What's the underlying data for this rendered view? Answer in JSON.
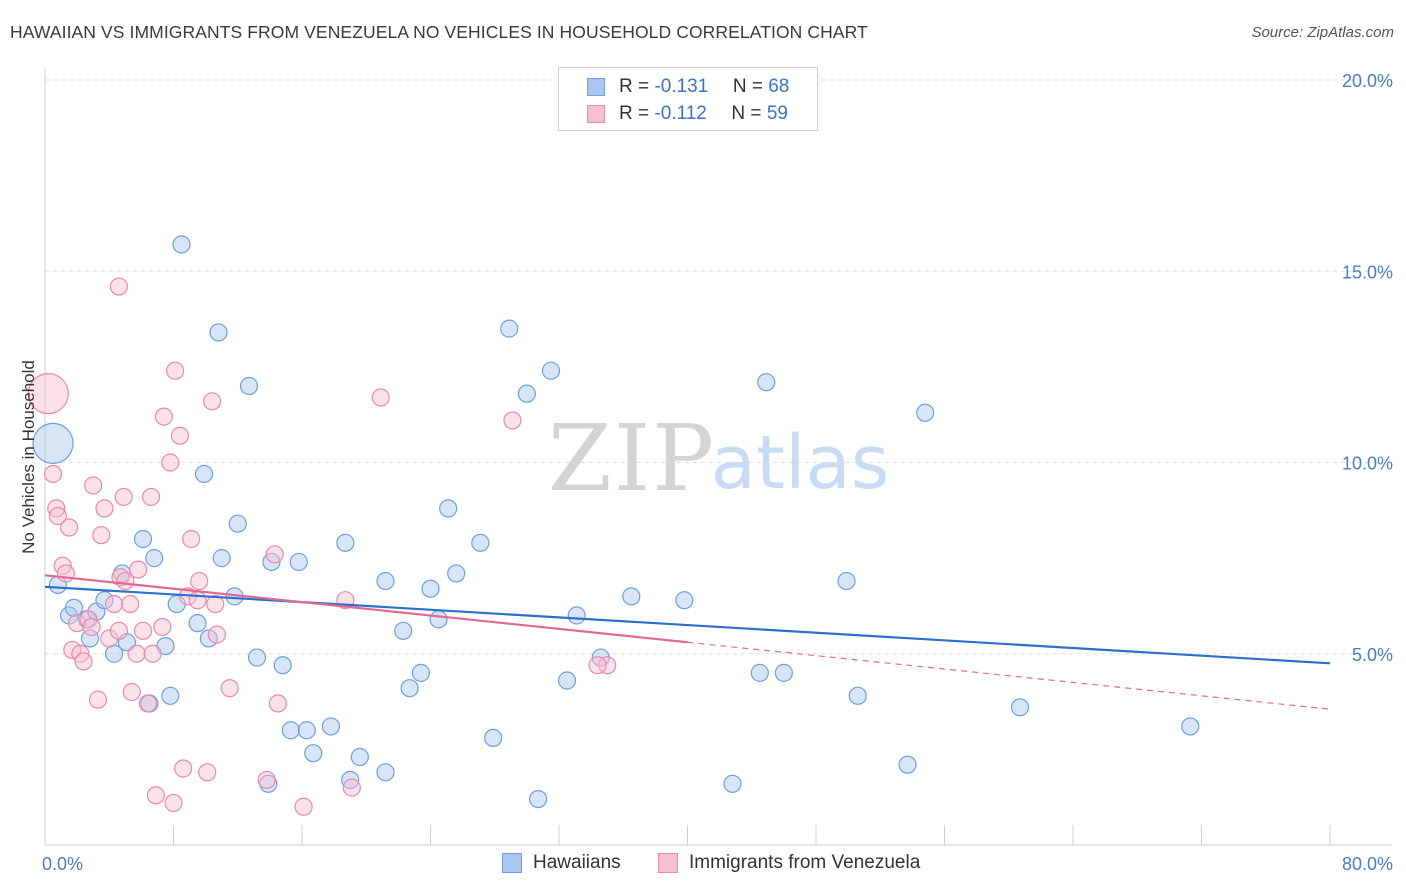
{
  "header": {
    "title": "HAWAIIAN VS IMMIGRANTS FROM VENEZUELA NO VEHICLES IN HOUSEHOLD CORRELATION CHART",
    "source": "Source: ZipAtlas.com"
  },
  "watermark": {
    "zip": "ZIP",
    "atlas": "atlas"
  },
  "legend": {
    "r_label": "R =",
    "n_label": "N =",
    "hawaiians": {
      "r": "-0.131",
      "n": "68"
    },
    "venezuela": {
      "r": "-0.112",
      "n": "59"
    }
  },
  "bottom_legend": {
    "hawaiians": "Hawaiians",
    "venezuela": "Immigrants from Venezuela"
  },
  "colors": {
    "hawaiians_fill": "#a9c6ee",
    "hawaiians_stroke": "#6f9fdc",
    "hawaiians_line": "#2d6fcc",
    "venezuela_fill": "#f7bfd1",
    "venezuela_stroke": "#e98aa8",
    "venezuela_line": "#e06a93",
    "tick_text": "#4a7cc7"
  },
  "chart_data": {
    "type": "scatter",
    "title": "HAWAIIAN VS IMMIGRANTS FROM VENEZUELA NO VEHICLES IN HOUSEHOLD CORRELATION CHART",
    "xlabel": "",
    "ylabel": "No Vehicles in Household",
    "xlim": [
      0,
      80
    ],
    "ylim": [
      0,
      20
    ],
    "x_tick_labels": [
      "0.0%",
      "80.0%"
    ],
    "y_ticks": [
      5,
      10,
      15,
      20
    ],
    "y_tick_labels": [
      "5.0%",
      "10.0%",
      "15.0%",
      "20.0%"
    ],
    "grid": true,
    "legend_position": "top-center",
    "series": [
      {
        "name": "Hawaiians",
        "points": [
          {
            "x": 0.5,
            "y": 10.5,
            "big": true
          },
          {
            "x": 0.8,
            "y": 6.8
          },
          {
            "x": 1.5,
            "y": 6.0
          },
          {
            "x": 1.8,
            "y": 6.2
          },
          {
            "x": 2.6,
            "y": 5.9
          },
          {
            "x": 2.8,
            "y": 5.4
          },
          {
            "x": 3.2,
            "y": 6.1
          },
          {
            "x": 3.7,
            "y": 6.4
          },
          {
            "x": 4.3,
            "y": 5.0
          },
          {
            "x": 4.8,
            "y": 7.1
          },
          {
            "x": 5.1,
            "y": 5.3
          },
          {
            "x": 6.1,
            "y": 8.0
          },
          {
            "x": 6.5,
            "y": 3.7
          },
          {
            "x": 6.8,
            "y": 7.5
          },
          {
            "x": 7.5,
            "y": 5.2
          },
          {
            "x": 7.8,
            "y": 3.9
          },
          {
            "x": 8.2,
            "y": 6.3
          },
          {
            "x": 8.5,
            "y": 15.7
          },
          {
            "x": 9.5,
            "y": 5.8
          },
          {
            "x": 9.9,
            "y": 9.7
          },
          {
            "x": 10.2,
            "y": 5.4
          },
          {
            "x": 10.8,
            "y": 13.4
          },
          {
            "x": 11.0,
            "y": 7.5
          },
          {
            "x": 11.8,
            "y": 6.5
          },
          {
            "x": 12.0,
            "y": 8.4
          },
          {
            "x": 12.7,
            "y": 12.0
          },
          {
            "x": 13.2,
            "y": 4.9
          },
          {
            "x": 13.9,
            "y": 1.6
          },
          {
            "x": 14.1,
            "y": 7.4
          },
          {
            "x": 14.8,
            "y": 4.7
          },
          {
            "x": 15.3,
            "y": 3.0
          },
          {
            "x": 15.8,
            "y": 7.4
          },
          {
            "x": 16.3,
            "y": 3.0
          },
          {
            "x": 16.7,
            "y": 2.4
          },
          {
            "x": 17.8,
            "y": 3.1
          },
          {
            "x": 18.7,
            "y": 7.9
          },
          {
            "x": 19.0,
            "y": 1.7
          },
          {
            "x": 19.6,
            "y": 2.3
          },
          {
            "x": 21.2,
            "y": 6.9
          },
          {
            "x": 21.2,
            "y": 1.9
          },
          {
            "x": 22.3,
            "y": 5.6
          },
          {
            "x": 22.7,
            "y": 4.1
          },
          {
            "x": 23.4,
            "y": 4.5
          },
          {
            "x": 24.0,
            "y": 6.7
          },
          {
            "x": 24.5,
            "y": 5.9
          },
          {
            "x": 25.1,
            "y": 8.8
          },
          {
            "x": 25.6,
            "y": 7.1
          },
          {
            "x": 27.1,
            "y": 7.9
          },
          {
            "x": 27.9,
            "y": 2.8
          },
          {
            "x": 28.9,
            "y": 13.5
          },
          {
            "x": 30.0,
            "y": 11.8
          },
          {
            "x": 30.7,
            "y": 1.2
          },
          {
            "x": 31.5,
            "y": 12.4
          },
          {
            "x": 32.5,
            "y": 4.3
          },
          {
            "x": 33.1,
            "y": 6.0
          },
          {
            "x": 34.6,
            "y": 4.9
          },
          {
            "x": 36.5,
            "y": 6.5
          },
          {
            "x": 39.8,
            "y": 6.4
          },
          {
            "x": 42.8,
            "y": 1.6
          },
          {
            "x": 44.5,
            "y": 4.5
          },
          {
            "x": 44.9,
            "y": 12.1
          },
          {
            "x": 46.0,
            "y": 4.5
          },
          {
            "x": 49.9,
            "y": 6.9
          },
          {
            "x": 50.6,
            "y": 3.9
          },
          {
            "x": 53.7,
            "y": 2.1
          },
          {
            "x": 54.8,
            "y": 11.3
          },
          {
            "x": 60.7,
            "y": 3.6
          },
          {
            "x": 71.3,
            "y": 3.1
          }
        ],
        "trend": {
          "x": [
            0,
            80
          ],
          "y": [
            6.75,
            4.75
          ]
        }
      },
      {
        "name": "Immigrants from Venezuela",
        "points": [
          {
            "x": 0.2,
            "y": 11.8,
            "big": true
          },
          {
            "x": 0.5,
            "y": 9.7
          },
          {
            "x": 0.7,
            "y": 8.8
          },
          {
            "x": 0.8,
            "y": 8.6
          },
          {
            "x": 1.1,
            "y": 7.3
          },
          {
            "x": 1.3,
            "y": 7.1
          },
          {
            "x": 1.5,
            "y": 8.3
          },
          {
            "x": 1.7,
            "y": 5.1
          },
          {
            "x": 2.0,
            "y": 5.8
          },
          {
            "x": 2.2,
            "y": 5.0
          },
          {
            "x": 2.4,
            "y": 4.8
          },
          {
            "x": 2.7,
            "y": 5.9
          },
          {
            "x": 2.9,
            "y": 5.7
          },
          {
            "x": 3.0,
            "y": 9.4
          },
          {
            "x": 3.3,
            "y": 3.8
          },
          {
            "x": 3.5,
            "y": 8.1
          },
          {
            "x": 3.7,
            "y": 8.8
          },
          {
            "x": 4.0,
            "y": 5.4
          },
          {
            "x": 4.3,
            "y": 6.3
          },
          {
            "x": 4.6,
            "y": 5.6
          },
          {
            "x": 4.7,
            "y": 7.0
          },
          {
            "x": 4.9,
            "y": 9.1
          },
          {
            "x": 5.0,
            "y": 6.9
          },
          {
            "x": 5.3,
            "y": 6.3
          },
          {
            "x": 5.4,
            "y": 4.0
          },
          {
            "x": 5.7,
            "y": 5.0
          },
          {
            "x": 5.8,
            "y": 7.2
          },
          {
            "x": 6.1,
            "y": 5.6
          },
          {
            "x": 6.4,
            "y": 3.7
          },
          {
            "x": 6.6,
            "y": 9.1
          },
          {
            "x": 6.7,
            "y": 5.0
          },
          {
            "x": 6.9,
            "y": 1.3
          },
          {
            "x": 7.3,
            "y": 5.7
          },
          {
            "x": 7.4,
            "y": 11.2
          },
          {
            "x": 7.8,
            "y": 10.0
          },
          {
            "x": 8.0,
            "y": 1.1
          },
          {
            "x": 8.1,
            "y": 12.4
          },
          {
            "x": 8.4,
            "y": 10.7
          },
          {
            "x": 8.6,
            "y": 2.0
          },
          {
            "x": 8.9,
            "y": 6.5
          },
          {
            "x": 9.1,
            "y": 8.0
          },
          {
            "x": 9.5,
            "y": 6.4
          },
          {
            "x": 9.6,
            "y": 6.9
          },
          {
            "x": 10.1,
            "y": 1.9
          },
          {
            "x": 10.4,
            "y": 11.6
          },
          {
            "x": 10.6,
            "y": 6.3
          },
          {
            "x": 10.7,
            "y": 5.5
          },
          {
            "x": 11.5,
            "y": 4.1
          },
          {
            "x": 13.8,
            "y": 1.7
          },
          {
            "x": 14.3,
            "y": 7.6
          },
          {
            "x": 14.5,
            "y": 3.7
          },
          {
            "x": 16.1,
            "y": 1.0
          },
          {
            "x": 18.7,
            "y": 6.4
          },
          {
            "x": 19.1,
            "y": 1.5
          },
          {
            "x": 20.9,
            "y": 11.7
          },
          {
            "x": 29.1,
            "y": 11.1
          },
          {
            "x": 35.0,
            "y": 4.7
          },
          {
            "x": 4.6,
            "y": 14.6
          },
          {
            "x": 34.4,
            "y": 4.7
          }
        ],
        "trend": {
          "x": [
            0,
            40
          ],
          "y": [
            7.05,
            5.3
          ]
        },
        "trend_extension": {
          "x": [
            40,
            80
          ],
          "y": [
            5.3,
            3.55
          ]
        }
      }
    ]
  }
}
